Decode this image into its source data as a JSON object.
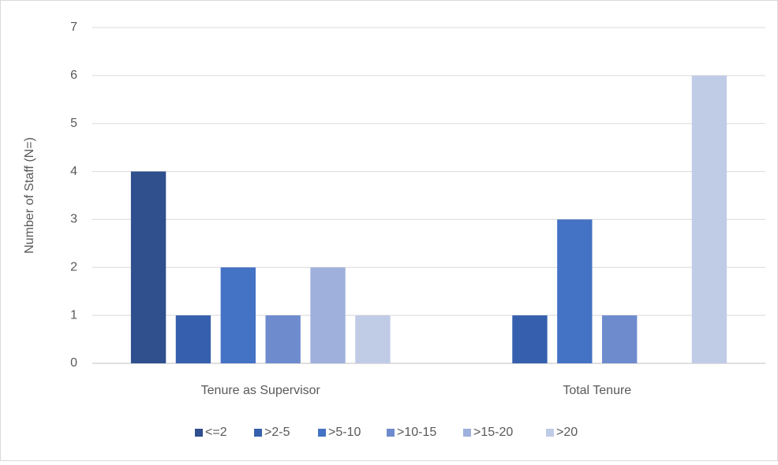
{
  "chart_data": {
    "type": "bar",
    "y_label": "Number of Staff (N=)",
    "categories": [
      "Tenure as Supervisor",
      "Total Tenure"
    ],
    "series": [
      {
        "name": "<=2",
        "color": "#2f4f8d",
        "values": [
          4,
          0
        ]
      },
      {
        "name": ">2-5",
        "color": "#3660ad",
        "values": [
          1,
          1
        ]
      },
      {
        "name": ">5-10",
        "color": "#4472c4",
        "values": [
          2,
          3
        ]
      },
      {
        "name": ">10-15",
        "color": "#6e8bce",
        "values": [
          1,
          1
        ]
      },
      {
        "name": ">15-20",
        "color": "#9fb0dc",
        "values": [
          2,
          0
        ]
      },
      {
        "name": ">20",
        "color": "#c0cbe6",
        "values": [
          1,
          6
        ]
      }
    ],
    "ylim": [
      0,
      7
    ],
    "yticks": [
      0,
      1,
      2,
      3,
      4,
      5,
      6,
      7
    ],
    "grid": true,
    "legend": "bottom"
  }
}
